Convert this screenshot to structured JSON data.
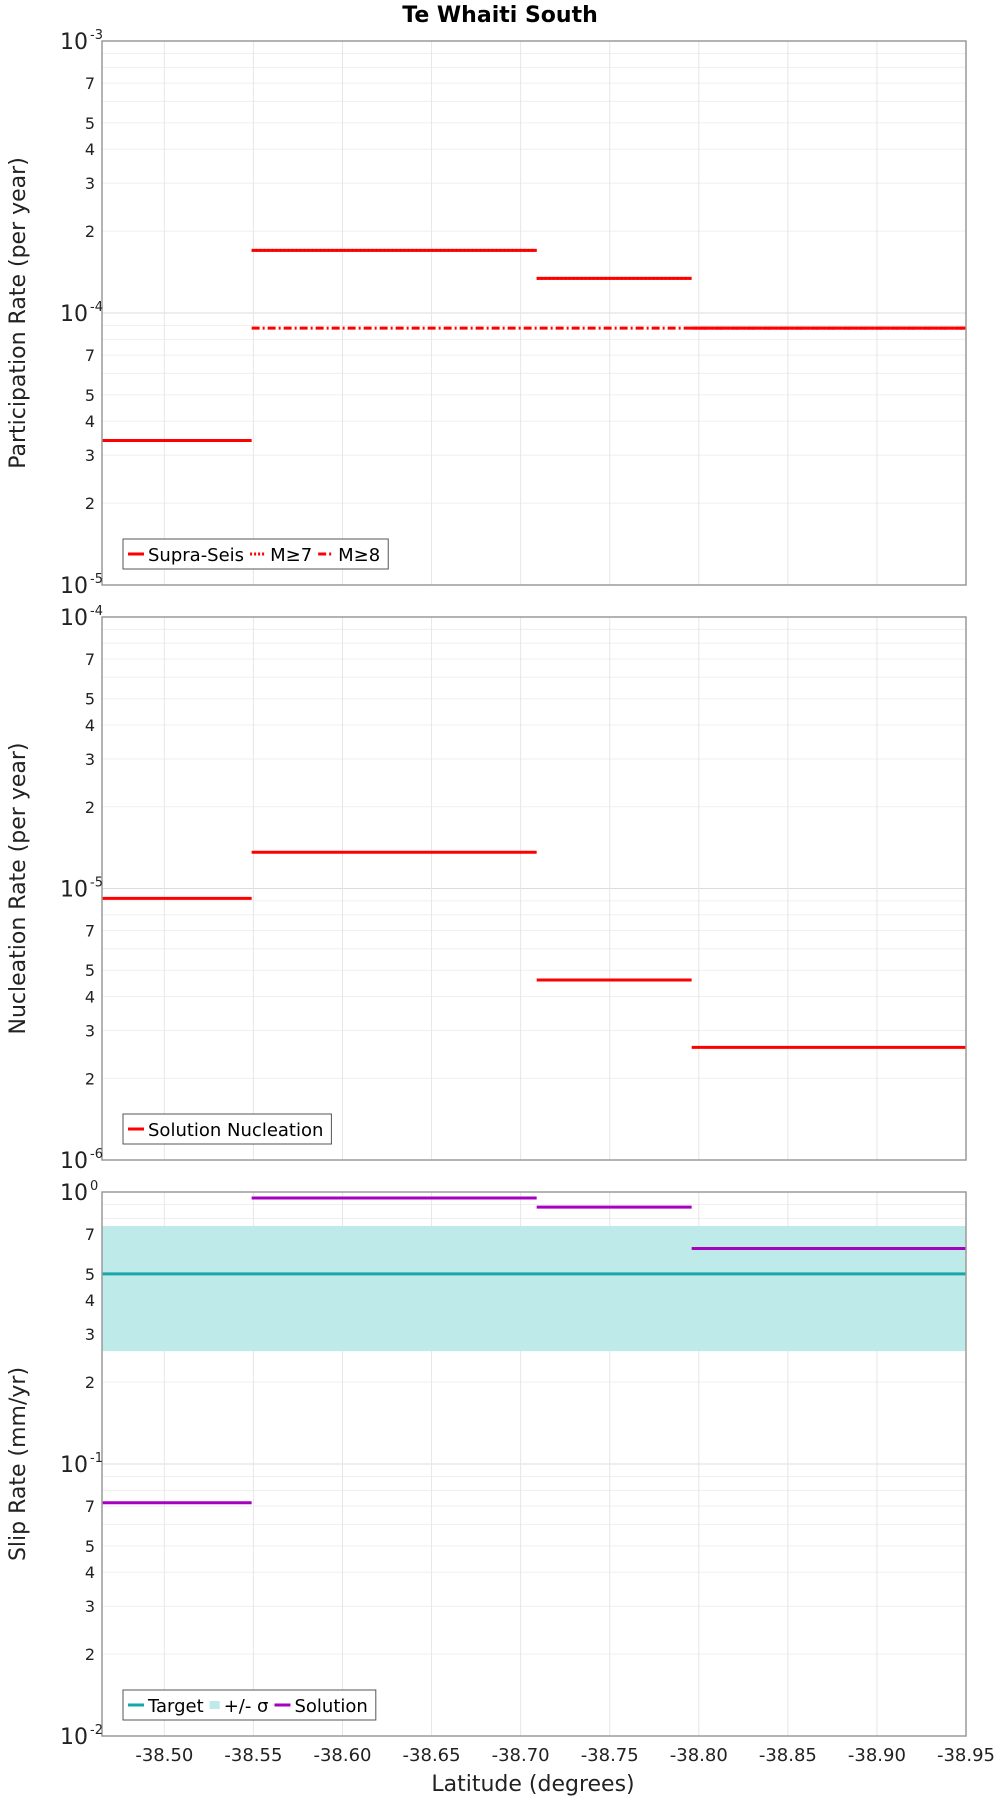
{
  "title": "Te Whaiti South",
  "xlabel": "Latitude (degrees)",
  "chart_data": [
    {
      "type": "line",
      "ylabel": "Participation Rate (per year)",
      "yscale": "log",
      "ylim": [
        1e-05,
        0.001
      ],
      "xlim": [
        -38.465,
        -38.95
      ],
      "yticks": [
        {
          "v": 0.001,
          "m": "10",
          "e": "-3"
        },
        {
          "v": 0.0007,
          "m": "7"
        },
        {
          "v": 0.0005,
          "m": "5"
        },
        {
          "v": 0.0004,
          "m": "4"
        },
        {
          "v": 0.0003,
          "m": "3"
        },
        {
          "v": 0.0002,
          "m": "2"
        },
        {
          "v": 0.0001,
          "m": "10",
          "e": "-4"
        },
        {
          "v": 7e-05,
          "m": "7"
        },
        {
          "v": 5e-05,
          "m": "5"
        },
        {
          "v": 4e-05,
          "m": "4"
        },
        {
          "v": 3e-05,
          "m": "3"
        },
        {
          "v": 2e-05,
          "m": "2"
        },
        {
          "v": 1e-05,
          "m": "10",
          "e": "-5"
        }
      ],
      "legend": [
        {
          "label": "Supra-Seis",
          "style": "solid",
          "color": "#ff0000"
        },
        {
          "label": "M≥7",
          "style": "dotted",
          "color": "#ff0000"
        },
        {
          "label": "M≥8",
          "style": "dashdot",
          "color": "#ff0000"
        }
      ],
      "series": [
        {
          "name": "Supra-Seis",
          "style": "solid",
          "color": "#ff0000",
          "segments": [
            {
              "x0": -38.465,
              "x1": -38.549,
              "y": 3.4e-05
            },
            {
              "x0": -38.549,
              "x1": -38.709,
              "y": 0.00017
            },
            {
              "x0": -38.709,
              "x1": -38.796,
              "y": 0.000134
            },
            {
              "x0": -38.796,
              "x1": -38.95,
              "y": 8.8e-05
            }
          ]
        },
        {
          "name": "M≥7",
          "style": "dotted",
          "color": "#ff0000",
          "segments": [
            {
              "x0": -38.549,
              "x1": -38.709,
              "y": 0.00017
            },
            {
              "x0": -38.709,
              "x1": -38.796,
              "y": 0.000134
            },
            {
              "x0": -38.796,
              "x1": -38.95,
              "y": 8.8e-05
            }
          ]
        },
        {
          "name": "M≥8",
          "style": "dashdot",
          "color": "#ff0000",
          "segments": [
            {
              "x0": -38.549,
              "x1": -38.95,
              "y": 8.8e-05
            }
          ]
        }
      ]
    },
    {
      "type": "line",
      "ylabel": "Nucleation Rate (per year)",
      "yscale": "log",
      "ylim": [
        1e-06,
        0.0001
      ],
      "xlim": [
        -38.465,
        -38.95
      ],
      "yticks": [
        {
          "v": 0.0001,
          "m": "10",
          "e": "-4"
        },
        {
          "v": 7e-05,
          "m": "7"
        },
        {
          "v": 5e-05,
          "m": "5"
        },
        {
          "v": 4e-05,
          "m": "4"
        },
        {
          "v": 3e-05,
          "m": "3"
        },
        {
          "v": 2e-05,
          "m": "2"
        },
        {
          "v": 1e-05,
          "m": "10",
          "e": "-5"
        },
        {
          "v": 7e-06,
          "m": "7"
        },
        {
          "v": 5e-06,
          "m": "5"
        },
        {
          "v": 4e-06,
          "m": "4"
        },
        {
          "v": 3e-06,
          "m": "3"
        },
        {
          "v": 2e-06,
          "m": "2"
        },
        {
          "v": 1e-06,
          "m": "10",
          "e": "-6"
        }
      ],
      "legend": [
        {
          "label": "Solution Nucleation",
          "style": "solid",
          "color": "#ff0000"
        }
      ],
      "series": [
        {
          "name": "Solution Nucleation",
          "style": "solid",
          "color": "#ff0000",
          "segments": [
            {
              "x0": -38.465,
              "x1": -38.549,
              "y": 9.2e-06
            },
            {
              "x0": -38.549,
              "x1": -38.709,
              "y": 1.36e-05
            },
            {
              "x0": -38.709,
              "x1": -38.796,
              "y": 4.6e-06
            },
            {
              "x0": -38.796,
              "x1": -38.95,
              "y": 2.6e-06
            }
          ]
        }
      ]
    },
    {
      "type": "line",
      "ylabel": "Slip Rate (mm/yr)",
      "yscale": "log",
      "ylim": [
        0.01,
        1
      ],
      "xlim": [
        -38.465,
        -38.95
      ],
      "yticks": [
        {
          "v": 1,
          "m": "10",
          "e": "0"
        },
        {
          "v": 0.7,
          "m": "7"
        },
        {
          "v": 0.5,
          "m": "5"
        },
        {
          "v": 0.4,
          "m": "4"
        },
        {
          "v": 0.3,
          "m": "3"
        },
        {
          "v": 0.2,
          "m": "2"
        },
        {
          "v": 0.1,
          "m": "10",
          "e": "-1"
        },
        {
          "v": 0.07,
          "m": "7"
        },
        {
          "v": 0.05,
          "m": "5"
        },
        {
          "v": 0.04,
          "m": "4"
        },
        {
          "v": 0.03,
          "m": "3"
        },
        {
          "v": 0.02,
          "m": "2"
        },
        {
          "v": 0.01,
          "m": "10",
          "e": "-2"
        }
      ],
      "band": {
        "name": "+/- σ",
        "lower": 0.26,
        "upper": 0.75,
        "color": "#bfeaea"
      },
      "legend": [
        {
          "label": "Target",
          "style": "solid",
          "color": "#1aa6a6"
        },
        {
          "label": "+/- σ",
          "style": "band",
          "color": "#bfeaea"
        },
        {
          "label": "Solution",
          "style": "solid",
          "color": "#a600c0"
        }
      ],
      "series": [
        {
          "name": "Target",
          "style": "solid",
          "color": "#1aa6a6",
          "segments": [
            {
              "x0": -38.465,
              "x1": -38.95,
              "y": 0.5
            }
          ]
        },
        {
          "name": "Solution",
          "style": "solid",
          "color": "#a600c0",
          "segments": [
            {
              "x0": -38.465,
              "x1": -38.549,
              "y": 0.072
            },
            {
              "x0": -38.549,
              "x1": -38.709,
              "y": 0.95
            },
            {
              "x0": -38.709,
              "x1": -38.796,
              "y": 0.88
            },
            {
              "x0": -38.796,
              "x1": -38.95,
              "y": 0.62
            }
          ]
        }
      ]
    }
  ],
  "xticks": [
    {
      "v": -38.5,
      "label": "-38.50"
    },
    {
      "v": -38.55,
      "label": "-38.55"
    },
    {
      "v": -38.6,
      "label": "-38.60"
    },
    {
      "v": -38.65,
      "label": "-38.65"
    },
    {
      "v": -38.7,
      "label": "-38.70"
    },
    {
      "v": -38.75,
      "label": "-38.75"
    },
    {
      "v": -38.8,
      "label": "-38.80"
    },
    {
      "v": -38.85,
      "label": "-38.85"
    },
    {
      "v": -38.9,
      "label": "-38.90"
    },
    {
      "v": -38.95,
      "label": "-38.95"
    }
  ]
}
